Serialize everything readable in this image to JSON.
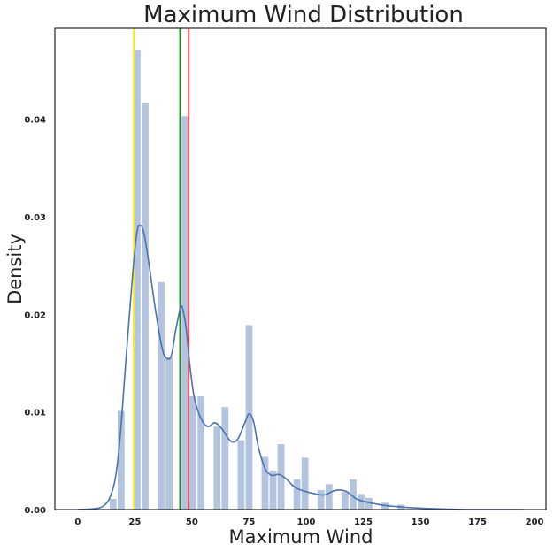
{
  "chart_data": {
    "type": "bar",
    "title": "Maximum Wind Distribution",
    "xlabel": "Maximum Wind",
    "ylabel": "Density",
    "xlim": [
      -10,
      205
    ],
    "ylim": [
      0,
      0.0493
    ],
    "x_ticks": [
      "0",
      "25",
      "50",
      "75",
      "100",
      "125",
      "150",
      "175",
      "200"
    ],
    "y_ticks": [
      "0.00",
      "0.01",
      "0.02",
      "0.03",
      "0.04"
    ],
    "grid": false,
    "bar_color": "#b2c4de",
    "histogram": {
      "bin_width": 3.48,
      "bins": [
        {
          "x": 15.5,
          "density": 0.0011
        },
        {
          "x": 19.0,
          "density": 0.0101
        },
        {
          "x": 26.0,
          "density": 0.0471
        },
        {
          "x": 29.5,
          "density": 0.0416
        },
        {
          "x": 36.5,
          "density": 0.0233
        },
        {
          "x": 40.0,
          "density": 0.0156
        },
        {
          "x": 47.0,
          "density": 0.0403
        },
        {
          "x": 50.5,
          "density": 0.0116
        },
        {
          "x": 54.0,
          "density": 0.0116
        },
        {
          "x": 61.0,
          "density": 0.0085
        },
        {
          "x": 64.5,
          "density": 0.0105
        },
        {
          "x": 71.5,
          "density": 0.0071
        },
        {
          "x": 75.0,
          "density": 0.0189
        },
        {
          "x": 82.0,
          "density": 0.0054
        },
        {
          "x": 85.5,
          "density": 0.004
        },
        {
          "x": 89.0,
          "density": 0.0067
        },
        {
          "x": 96.0,
          "density": 0.0031
        },
        {
          "x": 99.5,
          "density": 0.0053
        },
        {
          "x": 106.5,
          "density": 0.002
        },
        {
          "x": 110.0,
          "density": 0.0026
        },
        {
          "x": 117.0,
          "density": 0.0018
        },
        {
          "x": 120.5,
          "density": 0.0031
        },
        {
          "x": 124.0,
          "density": 0.0016
        },
        {
          "x": 127.5,
          "density": 0.0012
        },
        {
          "x": 134.5,
          "density": 0.0007
        },
        {
          "x": 141.5,
          "density": 0.0005
        }
      ]
    },
    "kde": {
      "color": "#4c72b0",
      "points": [
        [
          0,
          0.0
        ],
        [
          10,
          0.0002
        ],
        [
          15,
          0.0018
        ],
        [
          18,
          0.006
        ],
        [
          21,
          0.015
        ],
        [
          24,
          0.024
        ],
        [
          26,
          0.0285
        ],
        [
          27.5,
          0.0291
        ],
        [
          29,
          0.0283
        ],
        [
          31,
          0.0255
        ],
        [
          34,
          0.0205
        ],
        [
          37,
          0.0165
        ],
        [
          39,
          0.0155
        ],
        [
          41,
          0.0158
        ],
        [
          43,
          0.0185
        ],
        [
          45,
          0.0207
        ],
        [
          46,
          0.0205
        ],
        [
          47.5,
          0.0185
        ],
        [
          49,
          0.015
        ],
        [
          51,
          0.0115
        ],
        [
          54,
          0.0093
        ],
        [
          57,
          0.0085
        ],
        [
          60,
          0.0089
        ],
        [
          63,
          0.0083
        ],
        [
          67,
          0.007
        ],
        [
          70,
          0.0072
        ],
        [
          73,
          0.0088
        ],
        [
          75,
          0.0098
        ],
        [
          77,
          0.009
        ],
        [
          79,
          0.0065
        ],
        [
          82,
          0.0042
        ],
        [
          85,
          0.0035
        ],
        [
          88,
          0.0036
        ],
        [
          91,
          0.0032
        ],
        [
          95,
          0.0023
        ],
        [
          99,
          0.0019
        ],
        [
          104,
          0.0016
        ],
        [
          108,
          0.0015
        ],
        [
          112,
          0.0019
        ],
        [
          115,
          0.002
        ],
        [
          118,
          0.0018
        ],
        [
          122,
          0.0011
        ],
        [
          126,
          0.0008
        ],
        [
          130,
          0.0006
        ],
        [
          135,
          0.0004
        ],
        [
          140,
          0.0003
        ],
        [
          145,
          0.0002
        ],
        [
          155,
          0.0001
        ],
        [
          170,
          0.0
        ],
        [
          195,
          0.0
        ]
      ]
    },
    "vertical_lines": [
      {
        "x": 24.5,
        "color": "#ffea00"
      },
      {
        "x": 44.8,
        "color": "#1a8a1a"
      },
      {
        "x": 48.6,
        "color": "#e8343a"
      }
    ]
  }
}
